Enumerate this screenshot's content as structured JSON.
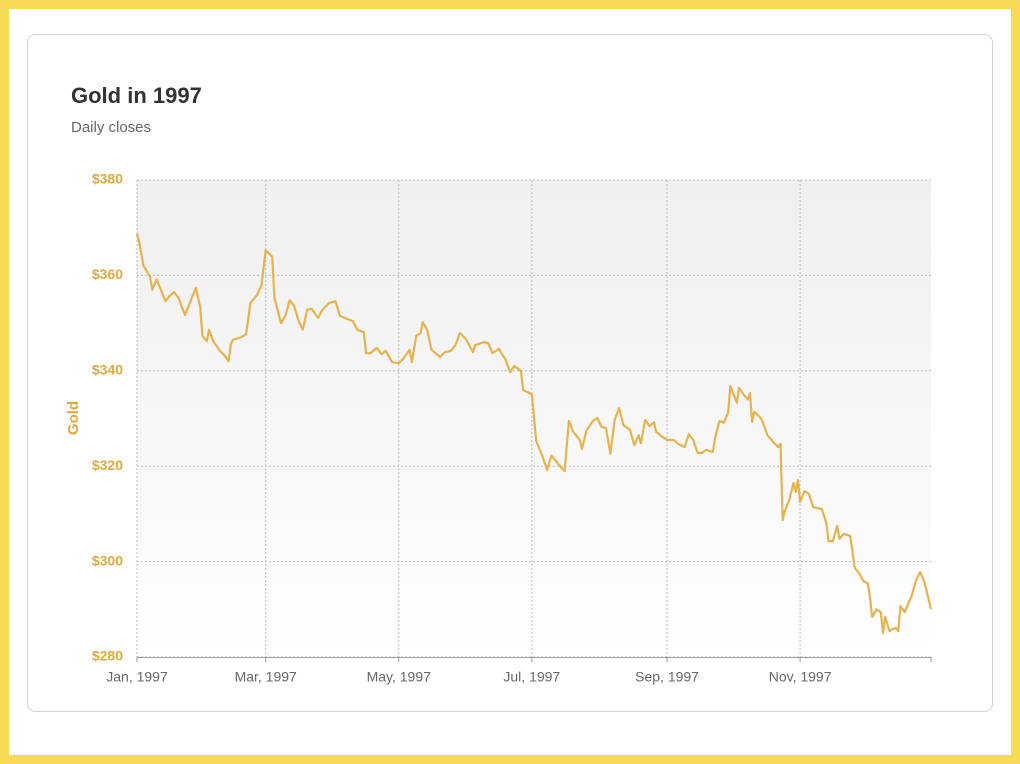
{
  "chart_data": {
    "type": "line",
    "title": "Gold in 1997",
    "subtitle": "Daily closes",
    "y_label": "Gold",
    "color": "#e6b34f",
    "grid": true,
    "xlim": [
      0,
      364
    ],
    "xticks": [
      {
        "value": 0,
        "label": "Jan, 1997"
      },
      {
        "value": 59,
        "label": "Mar, 1997"
      },
      {
        "value": 120,
        "label": "May, 1997"
      },
      {
        "value": 181,
        "label": "Jul, 1997"
      },
      {
        "value": 243,
        "label": "Sep, 1997"
      },
      {
        "value": 304,
        "label": "Nov, 1997"
      }
    ],
    "ylim": [
      280,
      380
    ],
    "yticks": [
      {
        "value": 280,
        "label": "$280"
      },
      {
        "value": 300,
        "label": "$300"
      },
      {
        "value": 320,
        "label": "$320"
      },
      {
        "value": 340,
        "label": "$340"
      },
      {
        "value": 360,
        "label": "$360"
      },
      {
        "value": 380,
        "label": "$380"
      }
    ],
    "x": [
      0,
      1,
      3,
      6,
      7,
      9,
      13,
      15,
      17,
      19,
      22,
      24,
      27,
      29,
      30,
      32,
      33,
      35,
      38,
      40,
      42,
      43,
      44,
      48,
      50,
      52,
      55,
      57,
      59,
      62,
      63,
      66,
      68,
      70,
      72,
      74,
      76,
      78,
      80,
      83,
      85,
      88,
      91,
      93,
      95,
      99,
      101,
      104,
      105,
      107,
      110,
      112,
      114,
      117,
      120,
      122,
      125,
      126,
      128,
      130,
      131,
      133,
      135,
      139,
      141,
      144,
      146,
      148,
      151,
      154,
      155,
      159,
      161,
      163,
      166,
      167,
      169,
      171,
      173,
      176,
      177,
      180,
      181,
      183,
      186,
      188,
      190,
      191,
      195,
      196,
      198,
      200,
      203,
      204,
      206,
      209,
      211,
      213,
      215,
      217,
      219,
      221,
      223,
      226,
      228,
      230,
      231,
      233,
      235,
      237,
      238,
      241,
      243,
      246,
      248,
      251,
      253,
      255,
      257,
      259,
      261,
      264,
      265,
      267,
      269,
      271,
      272,
      273,
      275,
      276,
      278,
      280,
      281,
      282,
      283,
      286,
      287,
      289,
      292,
      294,
      295,
      296,
      297,
      299,
      301,
      302,
      303,
      304,
      306,
      308,
      310,
      314,
      316,
      317,
      319,
      321,
      322,
      324,
      327,
      329,
      331,
      333,
      335,
      336,
      337,
      339,
      341,
      342,
      343,
      345,
      346,
      348,
      349,
      350,
      352,
      354,
      355,
      357,
      359,
      361,
      364
    ],
    "values": [
      368.7,
      367,
      362,
      359.7,
      357,
      359.2,
      354.6,
      355.7,
      356.5,
      355.3,
      351.7,
      354,
      357.4,
      353.2,
      347.3,
      346.2,
      348.6,
      346.2,
      344.2,
      343.3,
      342,
      345.6,
      346.5,
      347.1,
      347.7,
      354.2,
      355.9,
      357.8,
      365.3,
      363.9,
      355.3,
      350,
      351.5,
      354.8,
      353.6,
      350.6,
      348.6,
      352.8,
      353,
      351.1,
      352.8,
      354.2,
      354.6,
      351.5,
      351.1,
      350.4,
      348.6,
      348.1,
      343.7,
      343.7,
      344.8,
      343.5,
      344.2,
      341.8,
      341.6,
      342.5,
      344.4,
      341.8,
      347.3,
      347.9,
      350.2,
      348.6,
      344.4,
      342.9,
      343.9,
      344.2,
      345.4,
      347.9,
      346.5,
      343.9,
      345.4,
      346,
      345.8,
      343.7,
      344.6,
      343.7,
      342.3,
      339.7,
      341,
      340,
      336,
      335.3,
      335.1,
      325.3,
      321.9,
      319.2,
      322.2,
      321.7,
      319.4,
      319,
      329.5,
      327.2,
      325.5,
      323.6,
      327.4,
      329.5,
      330.1,
      328.2,
      328,
      322.6,
      329.7,
      332.2,
      328.6,
      327.6,
      324.4,
      326.5,
      324.8,
      329.7,
      328.4,
      329.2,
      327.2,
      326.1,
      325.5,
      325.5,
      324.7,
      324,
      326.7,
      325.5,
      322.8,
      322.8,
      323.4,
      323,
      325.9,
      329.5,
      329.1,
      331.2,
      336.8,
      335.6,
      333.3,
      336.4,
      335.1,
      334,
      335.3,
      329.3,
      331.4,
      330.1,
      329.1,
      326.5,
      324.9,
      324,
      324.7,
      308.7,
      310.6,
      312.9,
      316.5,
      314.6,
      317.1,
      312.5,
      314.8,
      314.2,
      311.4,
      311,
      308.1,
      304.3,
      304.3,
      307.5,
      304.8,
      305.8,
      305.4,
      298.7,
      297.6,
      295.9,
      295.5,
      292.7,
      288.4,
      290,
      289.4,
      285,
      288.4,
      285.4,
      285.8,
      286.1,
      285.4,
      290.7,
      289.4,
      291.7,
      292.6,
      295.9,
      297.8,
      295.7,
      290
    ]
  }
}
